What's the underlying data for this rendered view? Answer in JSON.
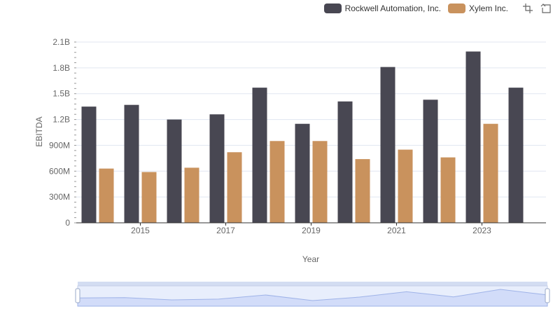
{
  "chart_data": {
    "type": "bar",
    "x": [
      2014,
      2015,
      2016,
      2017,
      2018,
      2019,
      2020,
      2021,
      2022,
      2023,
      2024
    ],
    "xticks": [
      "2015",
      "2017",
      "2019",
      "2021",
      "2023"
    ],
    "xlabel": "Year",
    "ylabel": "EBITDA",
    "yticks": [
      "0",
      "300M",
      "600M",
      "900M",
      "1.2B",
      "1.5B",
      "1.8B",
      "2.1B"
    ],
    "ylim": [
      0,
      2100000000
    ],
    "grid": true,
    "legend_position": "top-right",
    "series": [
      {
        "name": "Rockwell Automation, Inc.",
        "color": "#484752",
        "values": [
          1350000000,
          1370000000,
          1200000000,
          1260000000,
          1570000000,
          1150000000,
          1410000000,
          1810000000,
          1430000000,
          1990000000,
          1570000000
        ]
      },
      {
        "name": "Xylem Inc.",
        "color": "#c9925d",
        "values": [
          630000000,
          590000000,
          640000000,
          820000000,
          950000000,
          950000000,
          740000000,
          850000000,
          760000000,
          1150000000,
          null
        ]
      }
    ]
  },
  "toolbox": {
    "zoom_icon": "zoom-icon",
    "restore_icon": "restore-icon"
  }
}
